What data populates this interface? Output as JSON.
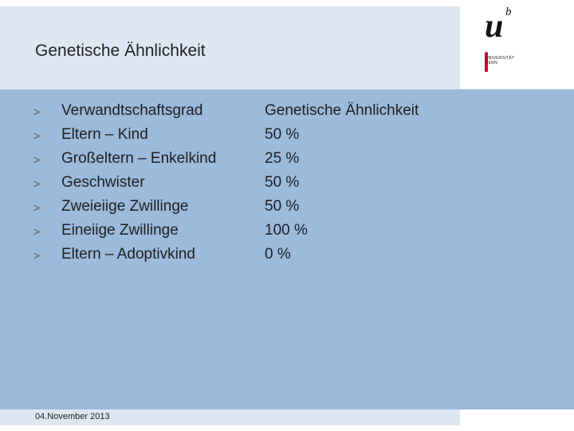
{
  "title": "Genetische Ähnlichkeit",
  "logo": {
    "mark": "u",
    "superscript": "b",
    "line1": "b",
    "line2": "UNIVERSITÄT",
    "line3": "BERN"
  },
  "rows": [
    {
      "bullet": ">",
      "relation": "Verwandtschaftsgrad",
      "value": "Genetische Ähnlichkeit"
    },
    {
      "bullet": ">",
      "relation": "Eltern – Kind",
      "value": "50 %"
    },
    {
      "bullet": ">",
      "relation": "Großeltern – Enkelkind",
      "value": "25 %"
    },
    {
      "bullet": ">",
      "relation": "Geschwister",
      "value": "50 %"
    },
    {
      "bullet": ">",
      "relation": "Zweieiige Zwillinge",
      "value": "50 %"
    },
    {
      "bullet": ">",
      "relation": "Eineiige Zwillinge",
      "value": "100 %"
    },
    {
      "bullet": ">",
      "relation": "Eltern – Adoptivkind",
      "value": "0 %"
    }
  ],
  "footer": {
    "date": "04.November 2013"
  }
}
